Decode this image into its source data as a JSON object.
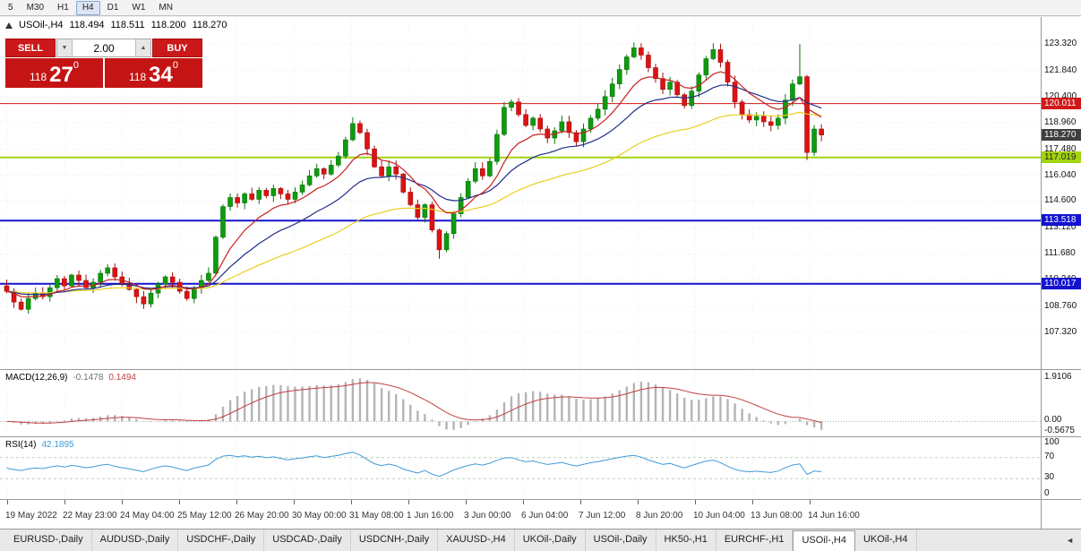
{
  "toolbar": {
    "timeframes": [
      "5",
      "M30",
      "H1",
      "H4",
      "D1",
      "W1",
      "MN"
    ],
    "active": "H4"
  },
  "chart_header": {
    "symbol": "USOil-,H4",
    "open": "118.494",
    "high": "118.511",
    "low": "118.200",
    "close": "118.270"
  },
  "trade_panel": {
    "sell_label": "SELL",
    "buy_label": "BUY",
    "volume": "2.00",
    "sell_price": {
      "prefix": "118",
      "big": "27",
      "sup": "0"
    },
    "buy_price": {
      "prefix": "118",
      "big": "34",
      "sup": "0"
    }
  },
  "price_axis": {
    "current": "118.270"
  },
  "hlines": [
    {
      "price": 120.011,
      "label": "120.011",
      "line_color": "#d01818",
      "box_bg": "#d01818",
      "box_fg": "#ffffff",
      "width": 1
    },
    {
      "price": 117.019,
      "label": "117.019",
      "line_color": "#a2d410",
      "box_bg": "#a2d410",
      "box_fg": "#222222",
      "width": 2
    },
    {
      "price": 113.518,
      "label": "113.518",
      "line_color": "#1313cf",
      "box_bg": "#1313cf",
      "box_fg": "#ffffff",
      "width": 2
    },
    {
      "price": 110.017,
      "label": "110.017",
      "line_color": "#1313cf",
      "box_bg": "#1313cf",
      "box_fg": "#ffffff",
      "width": 2
    }
  ],
  "macd": {
    "title": "MACD(12,26,9)",
    "value_main": "-0.1478",
    "value_signal": "0.1494",
    "axis": [
      "1.9106",
      "0.00",
      "-0.5675"
    ]
  },
  "rsi": {
    "title": "RSI(14)",
    "value": "42.1895",
    "axis": [
      "100",
      "70",
      "30",
      "0"
    ],
    "levels": [
      70,
      30
    ]
  },
  "tabs": {
    "items": [
      "EURUSD-,Daily",
      "AUDUSD-,Daily",
      "USDCHF-,Daily",
      "USDCAD-,Daily",
      "USDCNH-,Daily",
      "XAUUSD-,H4",
      "UKOil-,Daily",
      "USOil-,Daily",
      "HK50-,H1",
      "EURCHF-,H1",
      "USOil-,H4",
      "UKOil-,H4"
    ],
    "active": "USOil-,H4",
    "scroll_left_glyph": "◄"
  },
  "colors": {
    "up_candle_fill": "#0f9b0f",
    "up_candle_stroke": "#0a740a",
    "down_candle_fill": "#dd1212",
    "down_candle_stroke": "#a50c0c",
    "ma_fast_red": "#c82020",
    "ma_medium_navy": "#1f2e8a",
    "ma_slow_yellow": "#e8cf1e",
    "macd_histogram": "#b4b4b4",
    "macd_signal": "#c04040",
    "rsi_line": "#3f9bd8",
    "rsi_levels": "#b9d4b9",
    "grid": "#ececec"
  },
  "chart_data": {
    "type": "candlestick",
    "symbol": "USOil",
    "timeframe": "H4",
    "current_bar_ohlc": {
      "open": 118.494,
      "high": 118.511,
      "low": 118.2,
      "close": 118.27
    },
    "horizontal_lines": [
      120.011,
      117.019,
      113.518,
      110.017
    ],
    "price_axis_ticks": [
      "123.320",
      "121.840",
      "120.400",
      "118.960",
      "117.480",
      "116.040",
      "114.600",
      "113.120",
      "111.680",
      "110.240",
      "108.760",
      "107.320"
    ],
    "time_labels": [
      "19 May 2022",
      "22 May 23:00",
      "24 May 04:00",
      "25 May 12:00",
      "26 May 20:00",
      "30 May 00:00",
      "31 May 08:00",
      "1 Jun 16:00",
      "3 Jun 00:00",
      "6 Jun 04:00",
      "7 Jun 12:00",
      "8 Jun 20:00",
      "10 Jun 04:00",
      "13 Jun 08:00",
      "14 Jun 16:00"
    ],
    "first_open": 109.9,
    "closes": [
      109.6,
      109.0,
      108.6,
      109.2,
      109.5,
      109.3,
      109.8,
      110.3,
      109.9,
      110.5,
      110.2,
      109.8,
      110.1,
      110.6,
      110.9,
      110.4,
      110.0,
      109.7,
      109.3,
      108.9,
      109.5,
      110.0,
      110.4,
      110.1,
      109.6,
      109.2,
      109.8,
      110.2,
      110.6,
      112.6,
      114.3,
      114.8,
      114.5,
      115.0,
      114.7,
      115.2,
      114.9,
      115.3,
      115.0,
      114.7,
      115.1,
      115.5,
      116.0,
      116.4,
      116.1,
      116.6,
      117.1,
      118.0,
      118.9,
      118.4,
      117.5,
      116.5,
      116.0,
      116.5,
      116.1,
      115.1,
      114.4,
      113.7,
      114.4,
      113.0,
      111.9,
      112.8,
      113.9,
      114.8,
      115.7,
      116.4,
      116.0,
      116.8,
      118.3,
      119.8,
      120.1,
      119.4,
      118.8,
      119.2,
      118.6,
      118.1,
      118.5,
      119.0,
      118.4,
      117.9,
      118.6,
      119.2,
      119.7,
      120.4,
      121.1,
      121.9,
      122.6,
      123.1,
      122.7,
      122.0,
      121.4,
      120.8,
      121.2,
      120.5,
      119.9,
      120.7,
      121.6,
      122.5,
      123.0,
      122.3,
      121.2,
      120.1,
      119.4,
      119.1,
      119.3,
      119.0,
      118.8,
      119.2,
      120.2,
      121.1,
      121.5,
      117.3,
      118.6,
      118.27
    ],
    "wick_overrides": {
      "48": [
        0.35,
        0.08
      ],
      "60": [
        0.08,
        0.5
      ],
      "69": [
        0.3,
        0.1
      ],
      "87": [
        0.3,
        0.08
      ],
      "98": [
        0.35,
        0.08
      ],
      "110": [
        1.8,
        0.08
      ],
      "111": [
        0.1,
        0.42
      ]
    },
    "moving_averages": [
      {
        "name": "fast",
        "period": 9,
        "color_key": "ma_fast_red"
      },
      {
        "name": "medium",
        "period": 20,
        "color_key": "ma_medium_navy"
      },
      {
        "name": "slow",
        "period": 45,
        "color_key": "ma_slow_yellow"
      }
    ],
    "indicators": [
      {
        "name": "MACD",
        "params": [
          12,
          26,
          9
        ],
        "values": [
          -0.1478,
          0.1494
        ]
      },
      {
        "name": "RSI",
        "params": [
          14
        ],
        "value": 42.1895
      }
    ]
  }
}
